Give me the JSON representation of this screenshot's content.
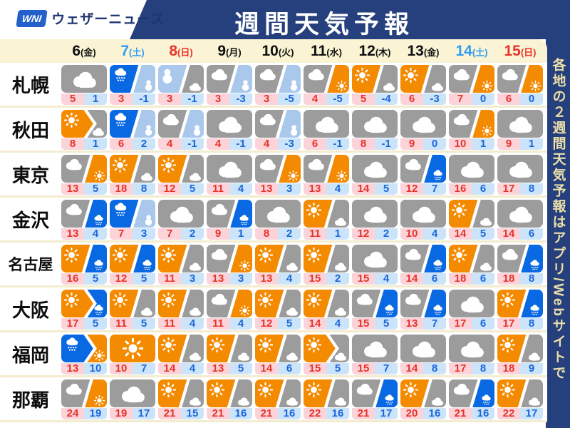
{
  "header": {
    "logo_mark": "WNI",
    "logo_text": "ウェザーニュース",
    "title": "週間天気予報"
  },
  "sidebar": {
    "vertical_text": "各地の２週間天気予報はアプリ/Webサイトで"
  },
  "colors": {
    "navy": "#26407e",
    "cream": "#faf3d4",
    "separator": "#f3ecce",
    "sunny_orange": "#f48a00",
    "cloudy_gray": "#9c9c9c",
    "rain_blue": "#0969e3",
    "snow_blue": "#a9c8ec",
    "high_bg": "#fbd3d8",
    "high_text": "#e6332a",
    "low_bg": "#cbe4f9",
    "low_text": "#1a66d9",
    "saturday_blue": "#2f9cf5",
    "sunday_red": "#e8332c",
    "logo_blue": "#2360cc",
    "banner_text": "#eadda8"
  },
  "icon_key": {
    "sun": "sunny-icon",
    "cloud": "cloudy-icon",
    "rain": "rain-icon",
    "snow": "snow-icon",
    "a/b": "first-weather-then-second-slash-divider",
    "a>b": "first-weather-then-second-arrow-divider"
  },
  "chart_data": {
    "type": "table",
    "title": "週間天気予報",
    "columns": [
      {
        "day": "6",
        "weekday": "金",
        "color": "k"
      },
      {
        "day": "7",
        "weekday": "土",
        "color": "b"
      },
      {
        "day": "8",
        "weekday": "日",
        "color": "r"
      },
      {
        "day": "9",
        "weekday": "月",
        "color": "k"
      },
      {
        "day": "10",
        "weekday": "火",
        "color": "k"
      },
      {
        "day": "11",
        "weekday": "水",
        "color": "k"
      },
      {
        "day": "12",
        "weekday": "木",
        "color": "k"
      },
      {
        "day": "13",
        "weekday": "金",
        "color": "k"
      },
      {
        "day": "14",
        "weekday": "土",
        "color": "b"
      },
      {
        "day": "15",
        "weekday": "日",
        "color": "r"
      }
    ],
    "rows": [
      {
        "city": "札幌",
        "cells": [
          {
            "wx": "cloud",
            "hi": 5,
            "lo": 1
          },
          {
            "wx": "rain/snow",
            "hi": 3,
            "lo": -1
          },
          {
            "wx": "snow/cloud",
            "hi": 3,
            "lo": -1
          },
          {
            "wx": "cloud/snow",
            "hi": 3,
            "lo": -3
          },
          {
            "wx": "cloud/snow",
            "hi": 3,
            "lo": -5
          },
          {
            "wx": "cloud/sun",
            "hi": 4,
            "lo": -5
          },
          {
            "wx": "sun/cloud",
            "hi": 5,
            "lo": -4
          },
          {
            "wx": "sun/cloud",
            "hi": 6,
            "lo": -3
          },
          {
            "wx": "cloud/sun",
            "hi": 7,
            "lo": 0
          },
          {
            "wx": "cloud/sun",
            "hi": 6,
            "lo": 0
          }
        ]
      },
      {
        "city": "秋田",
        "cells": [
          {
            "wx": "sun>cloud",
            "hi": 8,
            "lo": 1
          },
          {
            "wx": "rain/snow",
            "hi": 6,
            "lo": 2
          },
          {
            "wx": "cloud/snow",
            "hi": 4,
            "lo": -1
          },
          {
            "wx": "cloud",
            "hi": 4,
            "lo": -1
          },
          {
            "wx": "cloud/snow",
            "hi": 4,
            "lo": -3
          },
          {
            "wx": "cloud",
            "hi": 6,
            "lo": -1
          },
          {
            "wx": "cloud",
            "hi": 8,
            "lo": -1
          },
          {
            "wx": "cloud",
            "hi": 9,
            "lo": 0
          },
          {
            "wx": "cloud/sun",
            "hi": 10,
            "lo": 1
          },
          {
            "wx": "cloud",
            "hi": 9,
            "lo": 1
          }
        ]
      },
      {
        "city": "東京",
        "cells": [
          {
            "wx": "cloud/sun",
            "hi": 13,
            "lo": 5
          },
          {
            "wx": "sun/cloud",
            "hi": 18,
            "lo": 8
          },
          {
            "wx": "sun/cloud",
            "hi": 12,
            "lo": 5
          },
          {
            "wx": "cloud",
            "hi": 11,
            "lo": 4
          },
          {
            "wx": "cloud/sun",
            "hi": 13,
            "lo": 3
          },
          {
            "wx": "cloud/sun",
            "hi": 13,
            "lo": 4
          },
          {
            "wx": "cloud",
            "hi": 14,
            "lo": 5
          },
          {
            "wx": "cloud/rain",
            "hi": 12,
            "lo": 7
          },
          {
            "wx": "cloud",
            "hi": 16,
            "lo": 6
          },
          {
            "wx": "cloud",
            "hi": 17,
            "lo": 8
          }
        ]
      },
      {
        "city": "金沢",
        "cells": [
          {
            "wx": "cloud/rain",
            "hi": 13,
            "lo": 4
          },
          {
            "wx": "rain/snow",
            "hi": 7,
            "lo": 3
          },
          {
            "wx": "cloud",
            "hi": 7,
            "lo": 2
          },
          {
            "wx": "cloud/rain",
            "hi": 9,
            "lo": 1
          },
          {
            "wx": "cloud",
            "hi": 8,
            "lo": 2
          },
          {
            "wx": "sun/cloud",
            "hi": 11,
            "lo": 1
          },
          {
            "wx": "cloud",
            "hi": 12,
            "lo": 2
          },
          {
            "wx": "cloud",
            "hi": 10,
            "lo": 4
          },
          {
            "wx": "sun/cloud",
            "hi": 14,
            "lo": 5
          },
          {
            "wx": "cloud",
            "hi": 14,
            "lo": 6
          }
        ]
      },
      {
        "city": "名古屋",
        "cells": [
          {
            "wx": "sun/rain",
            "hi": 16,
            "lo": 5
          },
          {
            "wx": "sun/rain",
            "hi": 12,
            "lo": 5
          },
          {
            "wx": "sun/cloud",
            "hi": 11,
            "lo": 3
          },
          {
            "wx": "cloud/sun",
            "hi": 13,
            "lo": 3
          },
          {
            "wx": "sun/cloud",
            "hi": 13,
            "lo": 4
          },
          {
            "wx": "sun/cloud",
            "hi": 15,
            "lo": 2
          },
          {
            "wx": "cloud",
            "hi": 15,
            "lo": 4
          },
          {
            "wx": "cloud/rain",
            "hi": 14,
            "lo": 6
          },
          {
            "wx": "sun/cloud",
            "hi": 18,
            "lo": 6
          },
          {
            "wx": "cloud/rain",
            "hi": 18,
            "lo": 8
          }
        ]
      },
      {
        "city": "大阪",
        "cells": [
          {
            "wx": "sun>rain",
            "hi": 17,
            "lo": 5
          },
          {
            "wx": "sun/cloud",
            "hi": 11,
            "lo": 5
          },
          {
            "wx": "sun/cloud",
            "hi": 11,
            "lo": 4
          },
          {
            "wx": "cloud/sun",
            "hi": 11,
            "lo": 4
          },
          {
            "wx": "sun/cloud",
            "hi": 12,
            "lo": 5
          },
          {
            "wx": "sun/cloud",
            "hi": 14,
            "lo": 4
          },
          {
            "wx": "cloud/rain",
            "hi": 15,
            "lo": 5
          },
          {
            "wx": "cloud/rain",
            "hi": 13,
            "lo": 7
          },
          {
            "wx": "cloud",
            "hi": 17,
            "lo": 6
          },
          {
            "wx": "sun/rain",
            "hi": 17,
            "lo": 8
          }
        ]
      },
      {
        "city": "福岡",
        "cells": [
          {
            "wx": "rain>sun",
            "hi": 13,
            "lo": 10
          },
          {
            "wx": "sun",
            "hi": 10,
            "lo": 7
          },
          {
            "wx": "sun/cloud",
            "hi": 14,
            "lo": 4
          },
          {
            "wx": "sun/cloud",
            "hi": 13,
            "lo": 5
          },
          {
            "wx": "sun/cloud",
            "hi": 14,
            "lo": 6
          },
          {
            "wx": "sun>cloud",
            "hi": 15,
            "lo": 5
          },
          {
            "wx": "cloud",
            "hi": 15,
            "lo": 7
          },
          {
            "wx": "cloud",
            "hi": 14,
            "lo": 8
          },
          {
            "wx": "cloud",
            "hi": 17,
            "lo": 8
          },
          {
            "wx": "sun/cloud",
            "hi": 18,
            "lo": 9
          }
        ]
      },
      {
        "city": "那覇",
        "cells": [
          {
            "wx": "cloud/sun",
            "hi": 24,
            "lo": 19
          },
          {
            "wx": "cloud",
            "hi": 19,
            "lo": 17
          },
          {
            "wx": "sun/cloud",
            "hi": 21,
            "lo": 15
          },
          {
            "wx": "sun/cloud",
            "hi": 21,
            "lo": 16
          },
          {
            "wx": "sun/cloud",
            "hi": 21,
            "lo": 16
          },
          {
            "wx": "sun/cloud",
            "hi": 22,
            "lo": 16
          },
          {
            "wx": "cloud/rain",
            "hi": 21,
            "lo": 17
          },
          {
            "wx": "sun/cloud",
            "hi": 20,
            "lo": 16
          },
          {
            "wx": "cloud/rain",
            "hi": 21,
            "lo": 16
          },
          {
            "wx": "sun/cloud",
            "hi": 22,
            "lo": 17
          }
        ]
      }
    ]
  }
}
